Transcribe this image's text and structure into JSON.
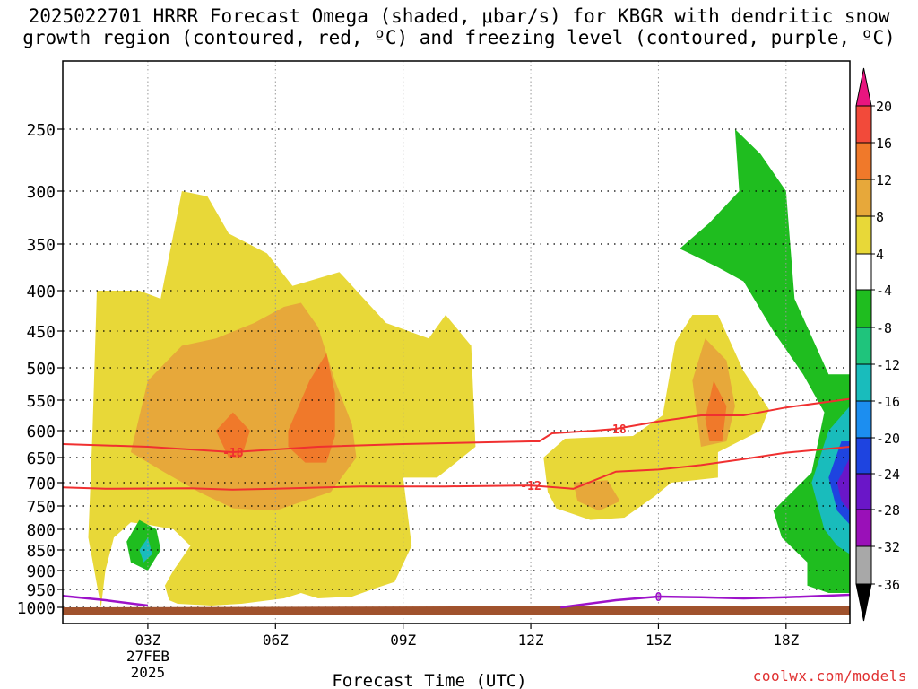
{
  "title": "2025022701 HRRR Forecast Omega (shaded, μbar/s) for KBGR with dendritic snow\ngrowth region (contoured, red, ºC) and freezing level (contoured, purple, ºC)",
  "credit": "coolwx.com/models",
  "chart_data": {
    "type": "time-height contour",
    "xlabel": "Forecast Time (UTC)",
    "x_ticks": [
      "03Z",
      "06Z",
      "09Z",
      "12Z",
      "15Z",
      "18Z"
    ],
    "date_label": [
      "27FEB",
      "2025"
    ],
    "y_ticks": [
      250,
      300,
      350,
      400,
      450,
      500,
      550,
      600,
      650,
      700,
      750,
      800,
      850,
      900,
      950,
      1000
    ],
    "ylabel": "",
    "colorbar": {
      "labels": [
        "20",
        "16",
        "12",
        "8",
        "4",
        "-4",
        "-8",
        "-12",
        "-16",
        "-20",
        "-24",
        "-28",
        "-32",
        "-36"
      ],
      "colors": [
        "#e8157f",
        "#f24a3a",
        "#f0792a",
        "#e7a83a",
        "#e8d838",
        "#ffffff",
        "#1fbd1f",
        "#1fc47c",
        "#19bcbc",
        "#1c8ef0",
        "#1e44e0",
        "#6a16c8",
        "#9a10b8",
        "#a8a8a8",
        "#000000"
      ]
    },
    "omega_regions": [
      {
        "level": "4",
        "color": "#e8d838",
        "desc": "broad rising motion 02Z-11Z",
        "path": [
          [
            1.9,
            1000
          ],
          [
            1.6,
            820
          ],
          [
            1.7,
            600
          ],
          [
            1.8,
            400
          ],
          [
            2.8,
            400
          ],
          [
            3.3,
            410
          ],
          [
            3.8,
            300
          ],
          [
            4.4,
            305
          ],
          [
            4.9,
            340
          ],
          [
            5.8,
            360
          ],
          [
            6.4,
            395
          ],
          [
            7.5,
            380
          ],
          [
            8.6,
            440
          ],
          [
            9.6,
            460
          ],
          [
            10.0,
            430
          ],
          [
            10.6,
            470
          ],
          [
            10.7,
            630
          ],
          [
            9.8,
            690
          ],
          [
            9.0,
            690
          ],
          [
            9.2,
            840
          ],
          [
            8.8,
            930
          ],
          [
            8.4,
            945
          ],
          [
            7.8,
            970
          ],
          [
            7.0,
            975
          ],
          [
            6.6,
            960
          ],
          [
            6.2,
            975
          ],
          [
            5.2,
            990
          ],
          [
            4.5,
            995
          ],
          [
            3.7,
            990
          ],
          [
            3.5,
            980
          ],
          [
            3.4,
            940
          ],
          [
            3.6,
            900
          ],
          [
            4.0,
            840
          ],
          [
            3.6,
            800
          ],
          [
            3.0,
            790
          ],
          [
            2.6,
            785
          ],
          [
            2.2,
            820
          ],
          [
            2.0,
            900
          ],
          [
            1.9,
            1000
          ]
        ]
      },
      {
        "level": "4",
        "color": "#e8d838",
        "desc": "afternoon rising region",
        "path": [
          [
            12.3,
            650
          ],
          [
            12.8,
            615
          ],
          [
            13.6,
            612
          ],
          [
            14.4,
            610
          ],
          [
            15.1,
            575
          ],
          [
            15.4,
            465
          ],
          [
            15.8,
            430
          ],
          [
            16.4,
            430
          ],
          [
            17.0,
            505
          ],
          [
            17.6,
            565
          ],
          [
            17.4,
            600
          ],
          [
            16.4,
            640
          ],
          [
            16.4,
            690
          ],
          [
            15.3,
            700
          ],
          [
            14.9,
            730
          ],
          [
            14.2,
            775
          ],
          [
            13.4,
            780
          ],
          [
            12.6,
            755
          ],
          [
            12.4,
            720
          ],
          [
            12.3,
            650
          ]
        ]
      },
      {
        "level": "8",
        "color": "#e7a83a",
        "desc": "moderate rising",
        "path": [
          [
            2.6,
            640
          ],
          [
            3.0,
            520
          ],
          [
            3.8,
            470
          ],
          [
            4.6,
            460
          ],
          [
            5.5,
            440
          ],
          [
            6.2,
            420
          ],
          [
            6.6,
            415
          ],
          [
            7.0,
            445
          ],
          [
            7.4,
            520
          ],
          [
            7.8,
            590
          ],
          [
            7.9,
            650
          ],
          [
            7.3,
            720
          ],
          [
            6.0,
            760
          ],
          [
            5.0,
            755
          ],
          [
            4.2,
            720
          ],
          [
            3.4,
            680
          ],
          [
            2.6,
            640
          ]
        ]
      },
      {
        "level": "12",
        "color": "#f0792a",
        "desc": "strongest rising 05Z",
        "path": [
          [
            4.6,
            600
          ],
          [
            5.0,
            570
          ],
          [
            5.4,
            600
          ],
          [
            5.2,
            650
          ],
          [
            4.9,
            650
          ],
          [
            4.6,
            600
          ]
        ]
      },
      {
        "level": "12",
        "color": "#f0792a",
        "desc": "strongest rising 07Z",
        "path": [
          [
            6.3,
            600
          ],
          [
            6.8,
            520
          ],
          [
            7.2,
            480
          ],
          [
            7.4,
            540
          ],
          [
            7.4,
            610
          ],
          [
            7.2,
            660
          ],
          [
            6.7,
            660
          ],
          [
            6.3,
            630
          ],
          [
            6.3,
            600
          ]
        ]
      },
      {
        "level": "8",
        "color": "#e7a83a",
        "desc": "afternoon moderate",
        "path": [
          [
            15.8,
            520
          ],
          [
            16.1,
            460
          ],
          [
            16.6,
            490
          ],
          [
            16.8,
            560
          ],
          [
            16.6,
            620
          ],
          [
            16.0,
            630
          ],
          [
            15.8,
            520
          ]
        ]
      },
      {
        "level": "12",
        "color": "#f0792a",
        "desc": "afternoon strong",
        "path": [
          [
            16.1,
            580
          ],
          [
            16.3,
            520
          ],
          [
            16.6,
            560
          ],
          [
            16.5,
            620
          ],
          [
            16.2,
            620
          ],
          [
            16.1,
            580
          ]
        ]
      },
      {
        "level": "8",
        "color": "#e7a83a",
        "desc": "small 13Z patch",
        "path": [
          [
            13.0,
            700
          ],
          [
            13.8,
            695
          ],
          [
            14.1,
            740
          ],
          [
            13.6,
            760
          ],
          [
            13.1,
            740
          ],
          [
            13.0,
            700
          ]
        ]
      },
      {
        "level": "-4",
        "color": "#1fbd1f",
        "desc": "sinking motion late period",
        "path": [
          [
            15.5,
            355
          ],
          [
            16.2,
            330
          ],
          [
            16.9,
            300
          ],
          [
            16.8,
            250
          ],
          [
            17.4,
            270
          ],
          [
            18.0,
            300
          ],
          [
            18.2,
            410
          ],
          [
            19.0,
            510
          ],
          [
            19.5,
            510
          ],
          [
            19.5,
            960
          ],
          [
            19.0,
            960
          ],
          [
            18.5,
            940
          ],
          [
            18.5,
            880
          ],
          [
            17.9,
            820
          ],
          [
            17.7,
            760
          ],
          [
            18.6,
            680
          ],
          [
            18.9,
            570
          ],
          [
            18.4,
            510
          ],
          [
            17.7,
            450
          ],
          [
            17.0,
            390
          ],
          [
            16.4,
            375
          ],
          [
            15.5,
            355
          ]
        ]
      },
      {
        "level": "-12",
        "color": "#19bcbc",
        "desc": "sinking core edge",
        "path": [
          [
            18.6,
            700
          ],
          [
            19.0,
            600
          ],
          [
            19.5,
            560
          ],
          [
            19.5,
            860
          ],
          [
            19.2,
            840
          ],
          [
            18.9,
            800
          ],
          [
            18.6,
            700
          ]
        ]
      },
      {
        "level": "-20",
        "color": "#1e44e0",
        "desc": "strong sinking",
        "path": [
          [
            19.0,
            690
          ],
          [
            19.3,
            620
          ],
          [
            19.5,
            620
          ],
          [
            19.5,
            790
          ],
          [
            19.2,
            760
          ],
          [
            19.0,
            690
          ]
        ]
      },
      {
        "level": "-28",
        "color": "#6a16c8",
        "desc": "strongest sinking",
        "path": [
          [
            19.2,
            700
          ],
          [
            19.5,
            650
          ],
          [
            19.5,
            760
          ],
          [
            19.3,
            740
          ],
          [
            19.2,
            700
          ]
        ]
      },
      {
        "level": "-4",
        "color": "#1fbd1f",
        "desc": "small sinking cell 03Z",
        "path": [
          [
            2.5,
            830
          ],
          [
            2.8,
            780
          ],
          [
            3.2,
            800
          ],
          [
            3.3,
            850
          ],
          [
            3.0,
            900
          ],
          [
            2.6,
            880
          ],
          [
            2.5,
            830
          ]
        ]
      },
      {
        "level": "-12",
        "color": "#19bcbc",
        "desc": "small sinking cell core",
        "path": [
          [
            2.8,
            850
          ],
          [
            3.0,
            820
          ],
          [
            3.1,
            860
          ],
          [
            2.9,
            880
          ],
          [
            2.8,
            850
          ]
        ]
      }
    ],
    "dgz_contours": [
      {
        "label": "-18",
        "color": "#f03030",
        "points": [
          [
            1.0,
            625
          ],
          [
            3.0,
            630
          ],
          [
            5.0,
            640
          ],
          [
            7.0,
            630
          ],
          [
            9.0,
            625
          ],
          [
            12.0,
            620
          ],
          [
            12.2,
            620
          ],
          [
            12.5,
            605
          ],
          [
            13.5,
            600
          ],
          [
            14.0,
            597
          ],
          [
            15.0,
            585
          ],
          [
            16.0,
            575
          ],
          [
            17.0,
            575
          ],
          [
            18.0,
            562
          ],
          [
            19.5,
            548
          ]
        ]
      },
      {
        "label": "-12",
        "color": "#f03030",
        "points": [
          [
            1.0,
            710
          ],
          [
            2.0,
            713
          ],
          [
            4.0,
            712
          ],
          [
            5.0,
            715
          ],
          [
            6.0,
            713
          ],
          [
            8.0,
            708
          ],
          [
            10.0,
            708
          ],
          [
            12.0,
            706
          ],
          [
            13.0,
            713
          ],
          [
            14.0,
            678
          ],
          [
            15.0,
            674
          ],
          [
            16.0,
            665
          ],
          [
            17.0,
            653
          ],
          [
            18.0,
            641
          ],
          [
            19.5,
            630
          ]
        ]
      }
    ],
    "freezing_level": {
      "label": "0",
      "color": "#9d12c9",
      "points_a": [
        [
          1.0,
          968
        ],
        [
          2.0,
          980
        ],
        [
          3.0,
          995
        ]
      ],
      "points_b": [
        [
          12.7,
          1000
        ],
        [
          14.0,
          980
        ],
        [
          15.0,
          970
        ],
        [
          16.0,
          972
        ],
        [
          17.0,
          975
        ],
        [
          18.0,
          972
        ],
        [
          19.5,
          965
        ]
      ]
    }
  }
}
